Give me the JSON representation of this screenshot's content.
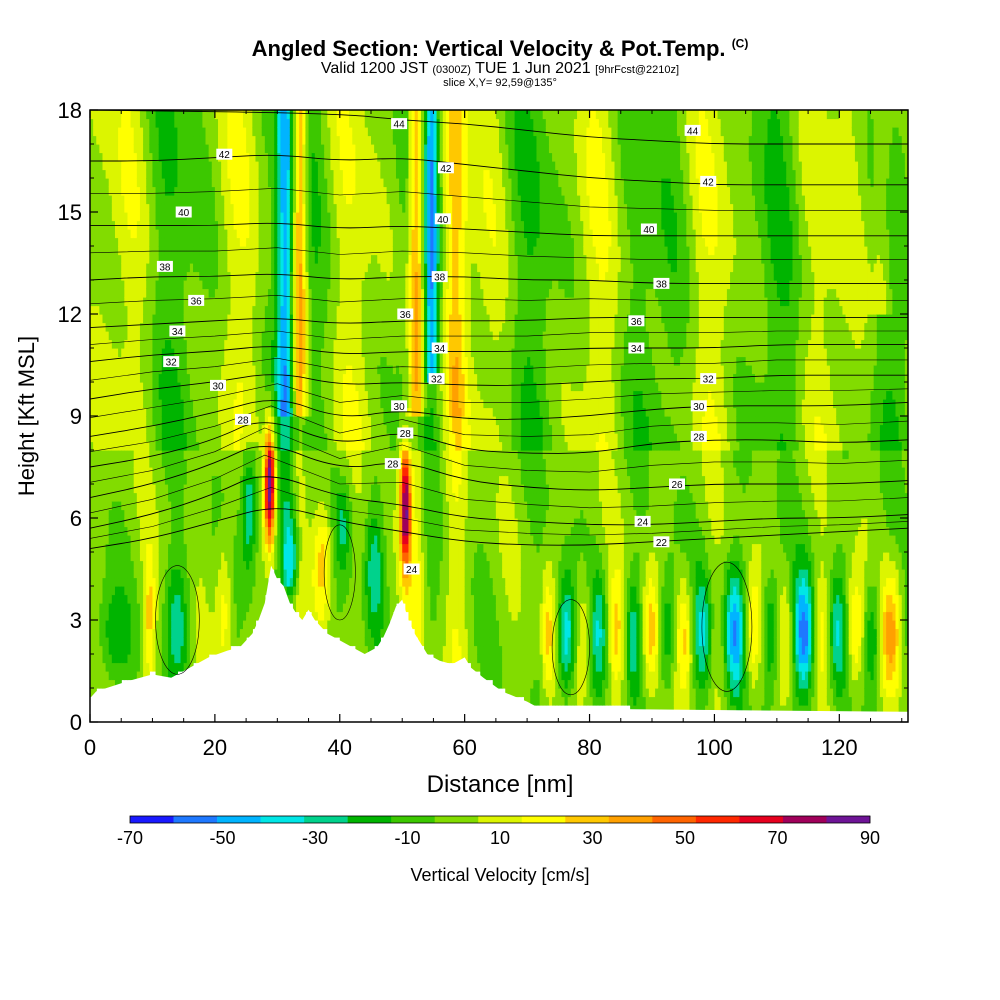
{
  "title": {
    "main": "Angled Section: Vertical Velocity & Pot.Temp.",
    "main_suffix": "(C)",
    "valid_prefix": "Valid 1200 JST",
    "valid_zulu": "(0300Z)",
    "valid_date": "TUE 1 Jun 2021",
    "forecast": "[9hrFcst@2210z]",
    "slice": "slice X,Y= 92,59@135°"
  },
  "chart_data": {
    "type": "heatmap",
    "xlabel": "Distance [nm]",
    "ylabel": "Height [Kft MSL]",
    "xlim": [
      0,
      131
    ],
    "ylim": [
      0,
      18
    ],
    "x_ticks": [
      0,
      20,
      40,
      60,
      80,
      100,
      120
    ],
    "y_ticks": [
      0,
      3,
      6,
      9,
      12,
      15,
      18
    ],
    "colorbar": {
      "label": "Vertical Velocity [cm/s]",
      "tick_labels": [
        "-70",
        "-50",
        "-30",
        "-10",
        "10",
        "30",
        "50",
        "70",
        "90"
      ],
      "bins": [
        -70,
        -60,
        -50,
        -40,
        -30,
        -20,
        -10,
        0,
        10,
        20,
        30,
        40,
        50,
        60,
        70,
        80,
        90
      ],
      "colors": [
        "#1919ff",
        "#1e78ff",
        "#00b4ff",
        "#00e6e6",
        "#00d28c",
        "#00b400",
        "#3cc800",
        "#82dc00",
        "#dcf500",
        "#ffff00",
        "#ffc800",
        "#ffa000",
        "#ff6400",
        "#ff2800",
        "#e6001e",
        "#a0005a",
        "#6e1496"
      ]
    },
    "terrain": [
      [
        0,
        0.7
      ],
      [
        1,
        0.9
      ],
      [
        6,
        1.2
      ],
      [
        10,
        1.4
      ],
      [
        13,
        1.3
      ],
      [
        16,
        1.6
      ],
      [
        19,
        1.9
      ],
      [
        22,
        2.1
      ],
      [
        24,
        2.2
      ],
      [
        26,
        2.6
      ],
      [
        27,
        3.0
      ],
      [
        28,
        3.5
      ],
      [
        29,
        4.6
      ],
      [
        30,
        4.2
      ],
      [
        31,
        4.0
      ],
      [
        32,
        3.5
      ],
      [
        33,
        3.2
      ],
      [
        34,
        3.0
      ],
      [
        35,
        3.3
      ],
      [
        36,
        3.0
      ],
      [
        38,
        2.6
      ],
      [
        40,
        2.4
      ],
      [
        42,
        2.2
      ],
      [
        44,
        2.0
      ],
      [
        46,
        2.2
      ],
      [
        47,
        2.5
      ],
      [
        48,
        2.9
      ],
      [
        49,
        3.4
      ],
      [
        50,
        3.6
      ],
      [
        51,
        3.0
      ],
      [
        52,
        2.6
      ],
      [
        54,
        2.0
      ],
      [
        56,
        1.8
      ],
      [
        58,
        1.7
      ],
      [
        60,
        1.9
      ],
      [
        61,
        1.6
      ],
      [
        63,
        1.3
      ],
      [
        66,
        0.9
      ],
      [
        70,
        0.6
      ],
      [
        72,
        0.4
      ],
      [
        131,
        0.3
      ]
    ],
    "theta_contours": [
      {
        "label": "22",
        "points": [
          [
            0,
            5.1
          ],
          [
            10,
            5.4
          ],
          [
            20,
            5.9
          ],
          [
            30,
            6.4
          ],
          [
            40,
            5.9
          ],
          [
            50,
            5.6
          ],
          [
            60,
            5.3
          ],
          [
            70,
            5.2
          ],
          [
            80,
            5.2
          ],
          [
            90,
            5.3
          ],
          [
            100,
            5.4
          ],
          [
            110,
            5.5
          ],
          [
            120,
            5.6
          ],
          [
            131,
            5.7
          ]
        ]
      },
      {
        "label": "24",
        "points": [
          [
            0,
            5.7
          ],
          [
            10,
            6.1
          ],
          [
            20,
            6.7
          ],
          [
            28,
            7.4
          ],
          [
            40,
            6.6
          ],
          [
            50,
            6.4
          ],
          [
            60,
            6.0
          ],
          [
            70,
            5.9
          ],
          [
            80,
            5.8
          ],
          [
            90,
            5.8
          ],
          [
            100,
            5.9
          ],
          [
            110,
            6.0
          ],
          [
            120,
            6.0
          ],
          [
            131,
            6.1
          ]
        ]
      },
      {
        "label": "26",
        "points": [
          [
            0,
            6.6
          ],
          [
            10,
            7.0
          ],
          [
            20,
            7.6
          ],
          [
            28,
            8.3
          ],
          [
            40,
            7.4
          ],
          [
            50,
            7.7
          ],
          [
            60,
            7.1
          ],
          [
            70,
            6.9
          ],
          [
            80,
            6.8
          ],
          [
            90,
            6.9
          ],
          [
            100,
            7.0
          ],
          [
            110,
            7.0
          ],
          [
            120,
            7.0
          ],
          [
            131,
            7.1
          ]
        ]
      },
      {
        "label": "28",
        "points": [
          [
            0,
            7.5
          ],
          [
            10,
            7.8
          ],
          [
            20,
            8.3
          ],
          [
            28,
            9.0
          ],
          [
            40,
            8.1
          ],
          [
            50,
            8.6
          ],
          [
            60,
            8.0
          ],
          [
            70,
            7.9
          ],
          [
            80,
            7.9
          ],
          [
            90,
            8.2
          ],
          [
            100,
            8.3
          ],
          [
            110,
            8.3
          ],
          [
            120,
            8.2
          ],
          [
            131,
            8.3
          ]
        ]
      },
      {
        "label": "30",
        "points": [
          [
            0,
            8.4
          ],
          [
            10,
            8.7
          ],
          [
            20,
            9.1
          ],
          [
            30,
            9.6
          ],
          [
            40,
            8.9
          ],
          [
            50,
            9.2
          ],
          [
            60,
            8.9
          ],
          [
            70,
            8.9
          ],
          [
            80,
            9.0
          ],
          [
            90,
            9.2
          ],
          [
            100,
            9.3
          ],
          [
            110,
            9.3
          ],
          [
            120,
            9.3
          ],
          [
            131,
            9.4
          ]
        ]
      },
      {
        "label": "32",
        "points": [
          [
            0,
            9.5
          ],
          [
            10,
            9.8
          ],
          [
            20,
            10.0
          ],
          [
            30,
            10.3
          ],
          [
            40,
            9.9
          ],
          [
            50,
            10.0
          ],
          [
            60,
            9.9
          ],
          [
            70,
            9.9
          ],
          [
            80,
            10.0
          ],
          [
            90,
            10.1
          ],
          [
            100,
            10.1
          ],
          [
            110,
            10.2
          ],
          [
            120,
            10.2
          ],
          [
            131,
            10.2
          ]
        ]
      },
      {
        "label": "34",
        "points": [
          [
            0,
            10.6
          ],
          [
            10,
            10.8
          ],
          [
            20,
            10.9
          ],
          [
            30,
            11.1
          ],
          [
            40,
            10.8
          ],
          [
            50,
            10.9
          ],
          [
            60,
            10.9
          ],
          [
            70,
            10.9
          ],
          [
            80,
            11.0
          ],
          [
            90,
            11.0
          ],
          [
            100,
            11.0
          ],
          [
            110,
            11.1
          ],
          [
            120,
            11.1
          ],
          [
            131,
            11.1
          ]
        ]
      },
      {
        "label": "36",
        "points": [
          [
            0,
            11.6
          ],
          [
            10,
            11.7
          ],
          [
            20,
            11.8
          ],
          [
            30,
            11.9
          ],
          [
            40,
            11.7
          ],
          [
            50,
            11.8
          ],
          [
            60,
            11.8
          ],
          [
            70,
            11.8
          ],
          [
            80,
            11.9
          ],
          [
            90,
            11.9
          ],
          [
            100,
            11.9
          ],
          [
            110,
            11.9
          ],
          [
            120,
            11.9
          ],
          [
            131,
            11.9
          ]
        ]
      },
      {
        "label": "38",
        "points": [
          [
            0,
            13.0
          ],
          [
            10,
            13.1
          ],
          [
            20,
            13.1
          ],
          [
            30,
            13.2
          ],
          [
            40,
            13.0
          ],
          [
            50,
            13.1
          ],
          [
            60,
            13.1
          ],
          [
            70,
            13.0
          ],
          [
            80,
            13.0
          ],
          [
            90,
            12.9
          ],
          [
            100,
            12.9
          ],
          [
            110,
            12.9
          ],
          [
            120,
            12.9
          ],
          [
            131,
            12.9
          ]
        ]
      },
      {
        "label": "40",
        "points": [
          [
            0,
            14.6
          ],
          [
            10,
            14.6
          ],
          [
            20,
            14.6
          ],
          [
            30,
            14.7
          ],
          [
            40,
            14.5
          ],
          [
            50,
            14.6
          ],
          [
            60,
            14.5
          ],
          [
            70,
            14.4
          ],
          [
            80,
            14.3
          ],
          [
            90,
            14.3
          ],
          [
            100,
            14.3
          ],
          [
            110,
            14.3
          ],
          [
            120,
            14.3
          ],
          [
            131,
            14.3
          ]
        ]
      },
      {
        "label": "42",
        "points": [
          [
            0,
            16.5
          ],
          [
            10,
            16.5
          ],
          [
            20,
            16.6
          ],
          [
            30,
            16.7
          ],
          [
            40,
            16.5
          ],
          [
            50,
            16.6
          ],
          [
            60,
            16.4
          ],
          [
            70,
            16.2
          ],
          [
            80,
            16.0
          ],
          [
            90,
            15.9
          ],
          [
            100,
            15.8
          ],
          [
            110,
            15.8
          ],
          [
            120,
            15.8
          ],
          [
            131,
            15.8
          ]
        ]
      },
      {
        "label": "44",
        "points": [
          [
            0,
            18.0
          ],
          [
            40,
            17.9
          ],
          [
            50,
            17.7
          ],
          [
            60,
            17.6
          ],
          [
            70,
            17.4
          ],
          [
            80,
            17.2
          ],
          [
            90,
            17.1
          ],
          [
            100,
            17.0
          ],
          [
            110,
            17.0
          ],
          [
            120,
            17.0
          ],
          [
            131,
            17.0
          ]
        ]
      }
    ],
    "contour_labels": [
      {
        "text": "42",
        "x": 21.5,
        "y": 16.7
      },
      {
        "text": "40",
        "x": 15,
        "y": 15.0
      },
      {
        "text": "38",
        "x": 12,
        "y": 13.4
      },
      {
        "text": "36",
        "x": 17,
        "y": 12.4
      },
      {
        "text": "34",
        "x": 14,
        "y": 11.5
      },
      {
        "text": "32",
        "x": 13,
        "y": 10.6
      },
      {
        "text": "30",
        "x": 20.5,
        "y": 9.9
      },
      {
        "text": "28",
        "x": 24.5,
        "y": 8.9
      },
      {
        "text": "44",
        "x": 49.5,
        "y": 17.6
      },
      {
        "text": "42",
        "x": 57,
        "y": 16.3
      },
      {
        "text": "40",
        "x": 56.5,
        "y": 14.8
      },
      {
        "text": "38",
        "x": 56,
        "y": 13.1
      },
      {
        "text": "36",
        "x": 50.5,
        "y": 12.0
      },
      {
        "text": "34",
        "x": 56,
        "y": 11.0
      },
      {
        "text": "32",
        "x": 55.5,
        "y": 10.1
      },
      {
        "text": "30",
        "x": 49.5,
        "y": 9.3
      },
      {
        "text": "28",
        "x": 50.5,
        "y": 8.5
      },
      {
        "text": "28",
        "x": 48.5,
        "y": 7.6
      },
      {
        "text": "24",
        "x": 51.5,
        "y": 4.5
      },
      {
        "text": "44",
        "x": 96.5,
        "y": 17.4
      },
      {
        "text": "42",
        "x": 99,
        "y": 15.9
      },
      {
        "text": "40",
        "x": 89.5,
        "y": 14.5
      },
      {
        "text": "38",
        "x": 91.5,
        "y": 12.9
      },
      {
        "text": "36",
        "x": 87.5,
        "y": 11.8
      },
      {
        "text": "34",
        "x": 87.5,
        "y": 11.0
      },
      {
        "text": "32",
        "x": 99,
        "y": 10.1
      },
      {
        "text": "30",
        "x": 97.5,
        "y": 9.3
      },
      {
        "text": "28",
        "x": 97.5,
        "y": 8.4
      },
      {
        "text": "26",
        "x": 94,
        "y": 7.0
      },
      {
        "text": "24",
        "x": 88.5,
        "y": 5.9
      },
      {
        "text": "22",
        "x": 91.5,
        "y": 5.3
      }
    ]
  }
}
